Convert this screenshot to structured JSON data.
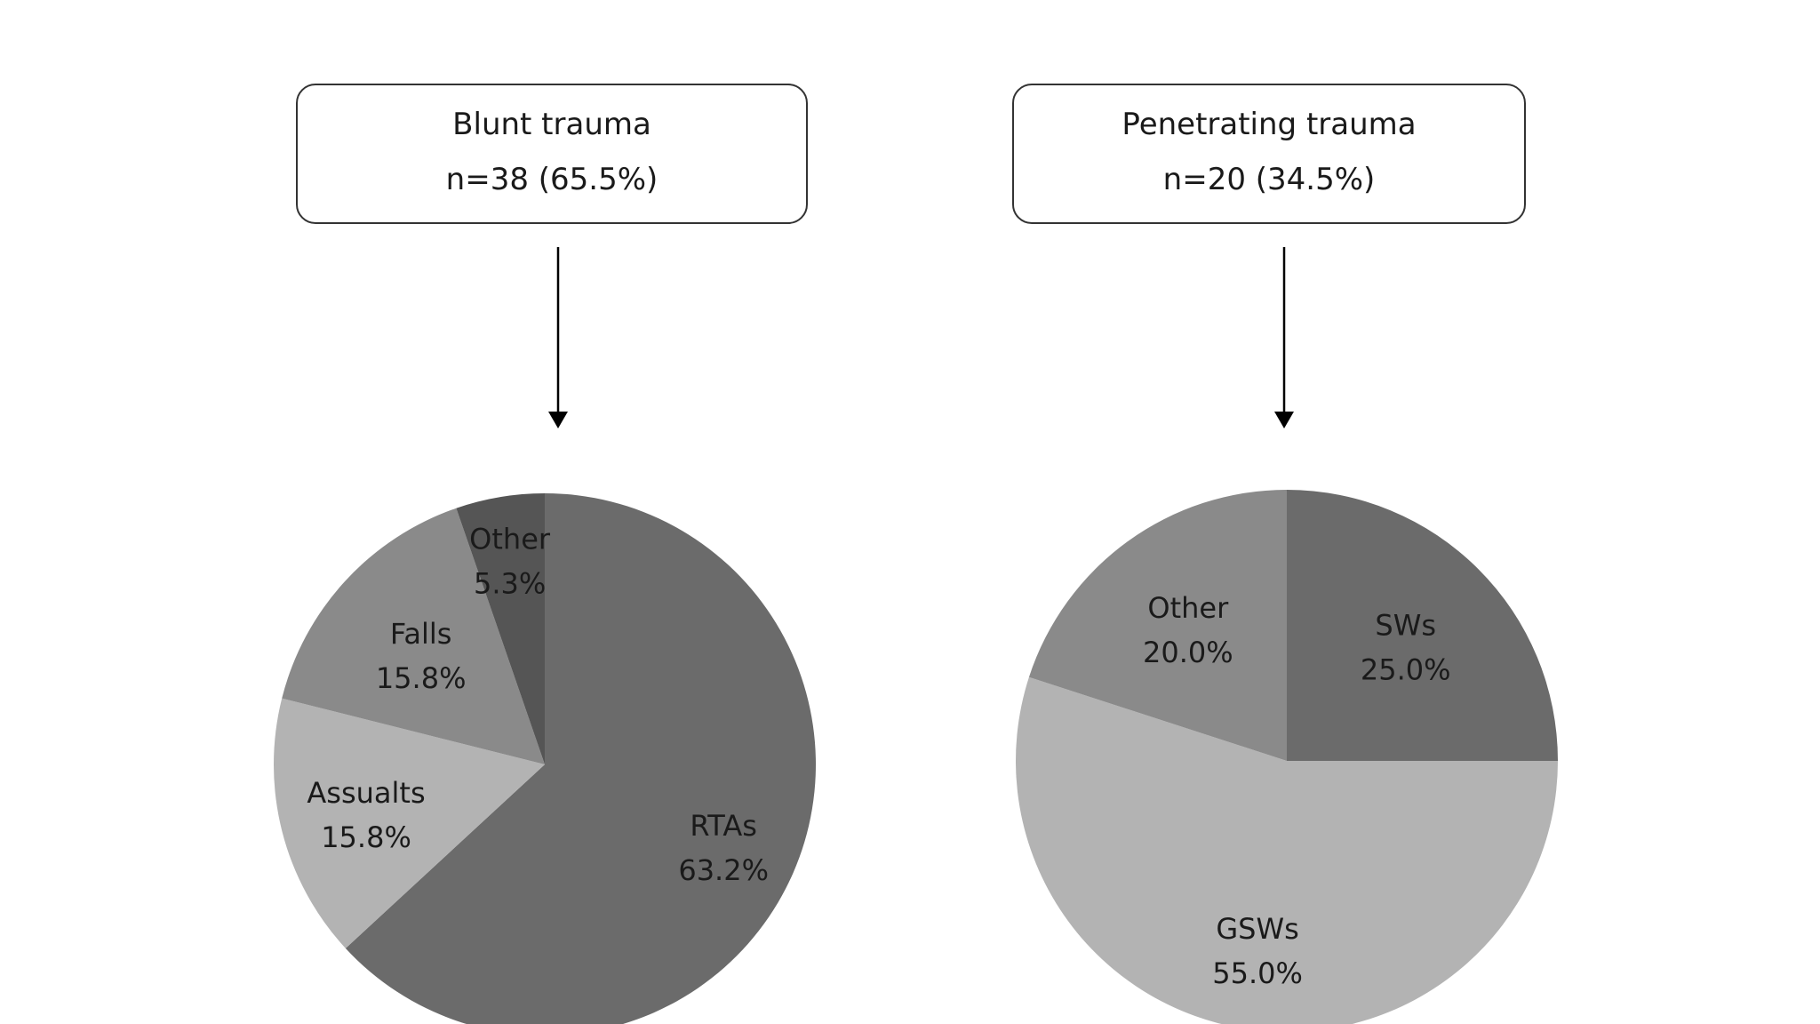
{
  "chart_data": [
    {
      "type": "pie",
      "title": "Blunt trauma",
      "subtitle": "n=38 (65.5%)",
      "slices": [
        {
          "label": "RTAs",
          "value": 63.2,
          "text": "63.2%",
          "color": "#6b6b6b"
        },
        {
          "label": "Assualts",
          "value": 15.8,
          "text": "15.8%",
          "color": "#b3b3b3"
        },
        {
          "label": "Falls",
          "value": 15.8,
          "text": "15.8%",
          "color": "#8a8a8a"
        },
        {
          "label": "Other",
          "value": 5.3,
          "text": "5.3%",
          "color": "#555555"
        }
      ]
    },
    {
      "type": "pie",
      "title": "Penetrating trauma",
      "subtitle": "n=20 (34.5%)",
      "slices": [
        {
          "label": "SWs",
          "value": 25.0,
          "text": "25.0%",
          "color": "#6b6b6b"
        },
        {
          "label": "GSWs",
          "value": 55.0,
          "text": "55.0%",
          "color": "#b3b3b3"
        },
        {
          "label": "Other",
          "value": 20.0,
          "text": "20.0%",
          "color": "#8a8a8a"
        }
      ]
    }
  ]
}
